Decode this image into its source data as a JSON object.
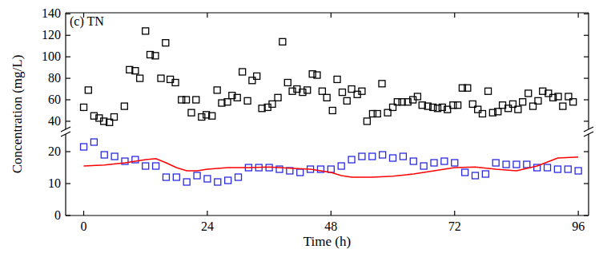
{
  "chart_data": {
    "type": "scatter",
    "title": "(c) TN",
    "x_label": "Time (h)",
    "y_label": "Concentration (mg/L)",
    "xlim": [
      -3.5,
      98
    ],
    "xticks": [
      0,
      24,
      48,
      72,
      96
    ],
    "ylim": [
      0,
      141
    ],
    "y_break": [
      25,
      34
    ],
    "yticks": [
      0,
      10,
      20,
      40,
      60,
      80,
      100,
      120,
      140
    ],
    "series": [
      {
        "type": "scatter",
        "marker": "square",
        "color": "#000000",
        "x": [
          0,
          0.9,
          2.0,
          3.0,
          3.9,
          5.0,
          5.9,
          7.9,
          8.9,
          10.0,
          10.9,
          12.0,
          12.9,
          13.9,
          15.0,
          15.9,
          16.8,
          17.8,
          19.0,
          19.9,
          20.9,
          21.8,
          22.9,
          23.8,
          24.9,
          25.9,
          26.8,
          27.9,
          28.8,
          29.8,
          30.8,
          31.8,
          32.7,
          33.6,
          34.6,
          35.7,
          36.6,
          37.7,
          38.6,
          39.6,
          40.5,
          41.4,
          42.5,
          43.4,
          44.4,
          45.3,
          46.3,
          47.2,
          48.3,
          49.2,
          50.2,
          51.1,
          52.0,
          53.1,
          54.0,
          55.0,
          56.1,
          57.0,
          57.9,
          59.0,
          60.0,
          60.9,
          61.8,
          62.9,
          63.9,
          64.8,
          65.7,
          66.8,
          67.8,
          68.7,
          69.6,
          70.6,
          71.7,
          72.6,
          73.5,
          74.5,
          75.5,
          76.5,
          77.4,
          78.5,
          79.4,
          80.4,
          81.3,
          82.4,
          83.3,
          84.3,
          85.2,
          86.3,
          87.2,
          88.2,
          89.1,
          90.2,
          91.1,
          92.1,
          93.0,
          94.1,
          95.0
        ],
        "values": [
          53,
          69,
          45,
          43,
          40,
          39,
          44,
          54,
          88,
          87,
          80,
          124,
          102,
          101,
          80,
          113,
          79,
          76,
          60,
          60,
          48,
          60,
          44,
          46,
          45,
          69,
          57,
          58,
          64,
          62,
          86,
          59,
          78,
          82,
          52,
          53,
          56,
          62,
          114,
          76,
          68,
          70,
          67,
          69,
          84,
          83,
          68,
          62,
          50,
          79,
          67,
          59,
          70,
          65,
          68,
          40,
          47,
          47,
          75,
          48,
          53,
          58,
          58,
          58,
          60,
          63,
          55,
          54,
          53,
          52,
          53,
          51,
          55,
          55,
          71,
          71,
          56,
          51,
          47,
          68,
          48,
          49,
          55,
          52,
          56,
          51,
          58,
          66,
          54,
          59,
          68,
          66,
          62,
          63,
          54,
          63,
          58
        ]
      },
      {
        "type": "scatter",
        "marker": "square",
        "color": "#2a2ae0",
        "x": [
          0,
          2,
          4,
          6,
          8,
          10,
          12,
          14,
          16,
          18,
          20,
          22,
          24,
          26,
          28,
          30,
          32,
          34,
          36,
          38,
          40,
          42,
          44,
          46,
          48,
          50,
          52,
          54,
          56,
          58,
          60,
          62,
          64,
          66,
          68,
          70,
          72,
          74,
          76,
          78,
          80,
          82,
          84,
          86,
          88,
          90,
          92,
          94,
          96
        ],
        "values": [
          21.5,
          23,
          19,
          18.5,
          17,
          17.5,
          15.5,
          15.5,
          12,
          12,
          10.5,
          12.5,
          11.5,
          10.5,
          11,
          12,
          15,
          15,
          15,
          14.5,
          14,
          13.5,
          14.5,
          14.5,
          14.5,
          15.5,
          17.5,
          18.5,
          18.5,
          19,
          18,
          18.5,
          17,
          15.5,
          16.5,
          17,
          16.5,
          13.5,
          12.5,
          13,
          16.5,
          16,
          16,
          16,
          15,
          15,
          14.5,
          14.5,
          14
        ]
      },
      {
        "type": "line",
        "line_style": "solid",
        "color": "#ff0000",
        "x": [
          0,
          4,
          8,
          12,
          14,
          16,
          18,
          20,
          22,
          24,
          28,
          32,
          36,
          40,
          44,
          48,
          50,
          52,
          56,
          60,
          64,
          68,
          72,
          76,
          80,
          84,
          88,
          92,
          96
        ],
        "values": [
          15.5,
          15.8,
          16.5,
          17.5,
          17.8,
          16.5,
          15,
          14,
          14,
          14.5,
          15,
          15,
          15.2,
          14.8,
          14.5,
          13.5,
          12.5,
          12,
          12,
          12.3,
          13,
          14,
          15,
          15.2,
          14.5,
          14,
          15.5,
          18,
          18.3
        ]
      }
    ]
  }
}
